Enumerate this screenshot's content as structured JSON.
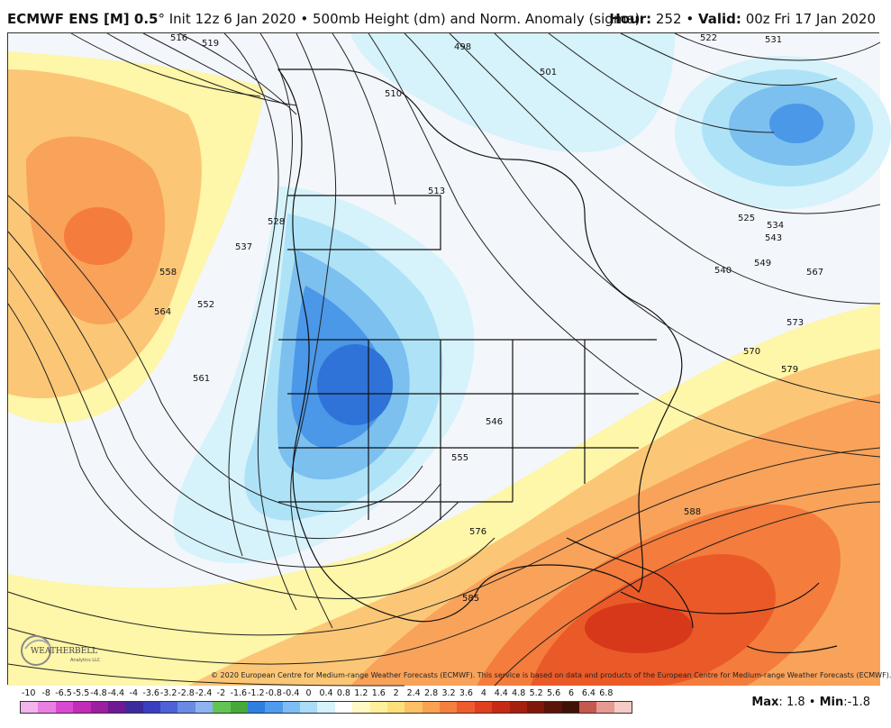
{
  "header": {
    "model": "ECMWF ENS [M] 0.5",
    "degree": "°",
    "description": "Init 12z 6 Jan 2020 • 500mb Height (dm) and Norm. Anomaly (sigma)",
    "hour_label": "Hour:",
    "hour_value": "252",
    "valid_label": "Valid:",
    "valid_value": "00z Fri 17 Jan 2020",
    "separator": "•"
  },
  "map": {
    "contour_labels": [
      "516",
      "519",
      "498",
      "501",
      "522",
      "531",
      "510",
      "513",
      "528",
      "537",
      "525",
      "534",
      "543",
      "549",
      "567",
      "558",
      "564",
      "552",
      "561",
      "540",
      "573",
      "570",
      "579",
      "546",
      "555",
      "576",
      "585",
      "588"
    ],
    "colors": {
      "ocean_neutral": "#f3f6fb",
      "light_blue": "#d6f2fb",
      "blue1": "#aee3f7",
      "blue2": "#7cc0f0",
      "blue3": "#4b97e8",
      "blue4": "#2f73d8",
      "yellow": "#fef6a8",
      "orange1": "#fbc776",
      "orange2": "#f9a25a",
      "orange3": "#f47c3c",
      "red1": "#ea5a28",
      "red2": "#d8381a"
    }
  },
  "copyright": "© 2020 European Centre for Medium-range Weather Forecasts (ECMWF). This service is based on data and products of the European Centre for Medium-range Weather Forecasts (ECMWF).",
  "logo": {
    "name": "WEATHERBELL",
    "sub": "Analytics LLC"
  },
  "colorbar": {
    "ticks": [
      "-10",
      "-8",
      "-6.5",
      "-5.5",
      "-4.8",
      "-4.4",
      "-4",
      "-3.6",
      "-3.2",
      "-2.8",
      "-2.4",
      "-2",
      "-1.6",
      "-1.2",
      "-0.8",
      "-0.4",
      "0",
      "0.4",
      "0.8",
      "1.2",
      "1.6",
      "2",
      "2.4",
      "2.8",
      "3.2",
      "3.6",
      "4",
      "4.4",
      "4.8",
      "5.2",
      "5.6",
      "6",
      "6.4",
      "6.8"
    ],
    "colors": [
      "#f3b3ef",
      "#e97fe3",
      "#d94ad0",
      "#c22cb7",
      "#9b1fa0",
      "#6d1a94",
      "#3b2b9c",
      "#3a3ec0",
      "#4d62d6",
      "#6b8ae6",
      "#8fb3f0",
      "#62c553",
      "#45aa3a",
      "#2f7fe0",
      "#4f9bec",
      "#7dbdf3",
      "#aadcf7",
      "#d6f2fb",
      "#ffffff",
      "#fffac4",
      "#fef09a",
      "#fde07a",
      "#fbc165",
      "#f9a252",
      "#f57f3f",
      "#ee5c2e",
      "#e0401f",
      "#c62a14",
      "#a61e0e",
      "#7f170b",
      "#5a1408",
      "#3f1107",
      "#c6584e",
      "#e59a92",
      "#f6cbc5"
    ]
  },
  "stats": {
    "max_label": "Max",
    "max_value": "1.8",
    "min_label": "Min",
    "min_value": "-1.8",
    "separator": "•"
  }
}
